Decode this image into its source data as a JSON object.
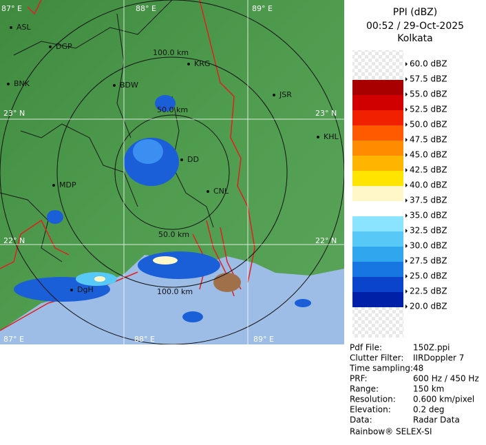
{
  "header": {
    "title": "PPI (dBZ)",
    "time": "00:52 / 29-Oct-2025",
    "station": "Kolkata"
  },
  "map": {
    "grid_labels": [
      "87° E",
      "88° E",
      "89° E",
      "23° N",
      "23° N",
      "22° N",
      "22° N",
      "88° E",
      "89° E",
      "87° E"
    ],
    "range_labels": [
      "100.0 km",
      "50.0 km",
      "50.0 km",
      "100.0 km"
    ],
    "cities": [
      "ASL",
      "DGP",
      "KRG",
      "BDW",
      "BNK",
      "JSR",
      "KHL",
      "DD",
      "MDP",
      "CNL",
      "DgH"
    ]
  },
  "legend": {
    "labels": [
      "60.0 dBZ",
      "57.5 dBZ",
      "55.0 dBZ",
      "52.5 dBZ",
      "50.0 dBZ",
      "47.5 dBZ",
      "45.0 dBZ",
      "42.5 dBZ",
      "40.0 dBZ",
      "37.5 dBZ",
      "35.0 dBZ",
      "32.5 dBZ",
      "30.0 dBZ",
      "27.5 dBZ",
      "25.0 dBZ",
      "22.5 dBZ",
      "20.0 dBZ"
    ],
    "colors": [
      "#a80000",
      "#d00000",
      "#f02000",
      "#ff5a00",
      "#ff8c00",
      "#ffb400",
      "#ffe400",
      "#fff7c8",
      "#ffffff",
      "#8ae4ff",
      "#58c8f6",
      "#30a6ef",
      "#1876e2",
      "#0a44cc",
      "#0020a8"
    ]
  },
  "info": {
    "rows": [
      [
        "Pdf File:",
        "150Z.ppi"
      ],
      [
        "Clutter Filter:",
        "IIRDoppler 7"
      ],
      [
        "Time sampling:",
        "48"
      ],
      [
        "PRF:",
        "600 Hz / 450 Hz"
      ],
      [
        "Range:",
        "150 km"
      ],
      [
        "Resolution:",
        "0.600 km/pixel"
      ],
      [
        "Elevation:",
        "0.2 deg"
      ],
      [
        "Data:",
        "Radar Data"
      ]
    ],
    "footer": "Rainbow® SELEX-SI"
  }
}
